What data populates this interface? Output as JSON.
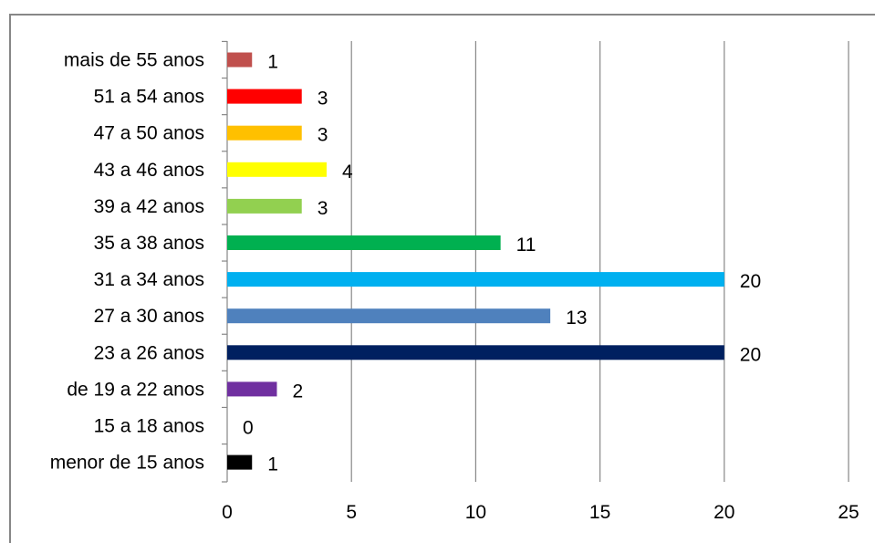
{
  "chart_data": {
    "type": "bar",
    "orientation": "horizontal",
    "title": "",
    "xlabel": "",
    "ylabel": "",
    "xlim": [
      0,
      25
    ],
    "x_ticks": [
      "0",
      "5",
      "10",
      "15",
      "20",
      "25"
    ],
    "grid": true,
    "legend": "none",
    "categories": [
      "mais de 55 anos",
      "51 a 54 anos",
      "47 a 50 anos",
      "43 a 46 anos",
      "39 a 42 anos",
      "35 a 38 anos",
      "31 a 34 anos",
      "27 a 30 anos",
      "23 a 26 anos",
      "de 19 a 22 anos",
      "15 a 18 anos",
      "menor de 15 anos"
    ],
    "values": [
      1,
      3,
      3,
      4,
      3,
      11,
      20,
      13,
      20,
      2,
      0,
      1
    ],
    "value_labels": [
      "1",
      "3",
      "3",
      "4",
      "3",
      "11",
      "20",
      "13",
      "20",
      "2",
      "0",
      "1"
    ],
    "colors": [
      "#C0504D",
      "#FF0000",
      "#FFC000",
      "#FFFF00",
      "#92D050",
      "#00B050",
      "#00B0F0",
      "#4F81BD",
      "#002060",
      "#7030A0",
      "#FFFFFF",
      "#000000"
    ],
    "gridline_color": "#878787"
  }
}
